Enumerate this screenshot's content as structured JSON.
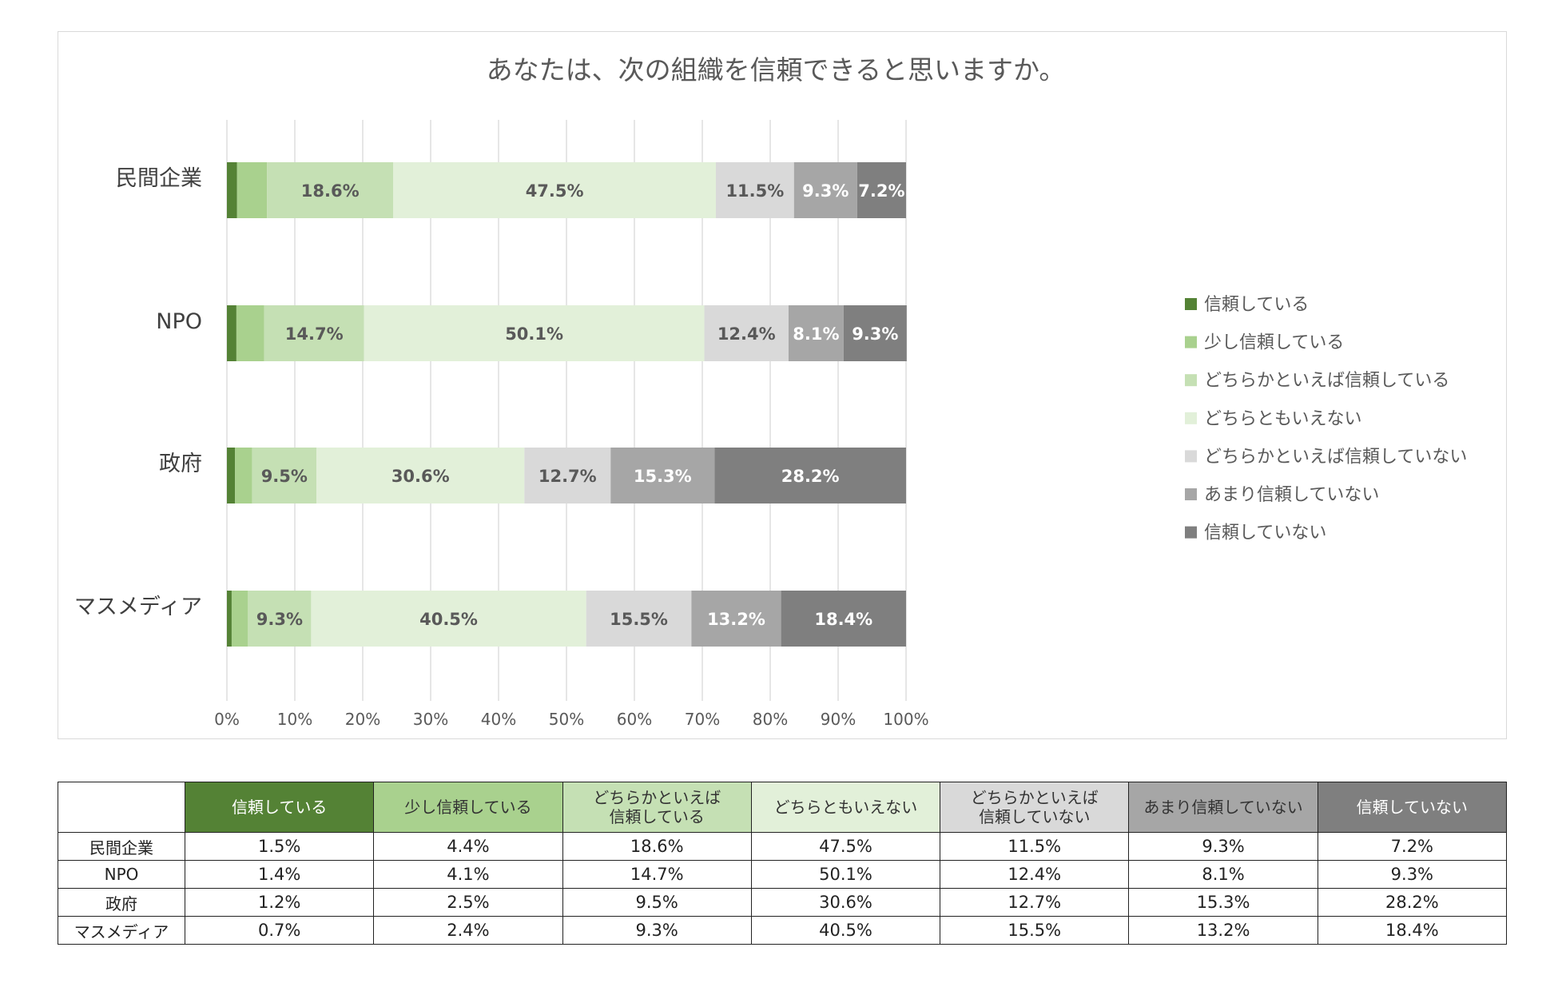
{
  "chart_data": {
    "type": "bar",
    "orientation": "horizontal",
    "stacked": "percent",
    "title": "あなたは、次の組織を信頼できると思いますか。",
    "categories": [
      "民間企業",
      "NPO",
      "政府",
      "マスメディア"
    ],
    "series": [
      {
        "name": "信頼している",
        "values": [
          1.5,
          1.4,
          1.2,
          0.7
        ],
        "color": "#548235",
        "labels": [
          "",
          "",
          "",
          ""
        ],
        "label_color": "#ffffff"
      },
      {
        "name": "少し信頼している",
        "values": [
          4.4,
          4.1,
          2.5,
          2.4
        ],
        "color": "#a9d18e",
        "labels": [
          "",
          "",
          "",
          ""
        ],
        "label_color": "#595959"
      },
      {
        "name": "どちらかといえば信頼している",
        "values": [
          18.6,
          14.7,
          9.5,
          9.3
        ],
        "color": "#c5e0b4",
        "labels": [
          "18.6%",
          "14.7%",
          "9.5%",
          "9.3%"
        ],
        "label_color": "#595959"
      },
      {
        "name": "どちらともいえない",
        "values": [
          47.5,
          50.1,
          30.6,
          40.5
        ],
        "color": "#e2f0d9",
        "labels": [
          "47.5%",
          "50.1%",
          "30.6%",
          "40.5%"
        ],
        "label_color": "#595959"
      },
      {
        "name": "どちらかといえば信頼していない",
        "values": [
          11.5,
          12.4,
          12.7,
          15.5
        ],
        "color": "#d9d9d9",
        "labels": [
          "11.5%",
          "12.4%",
          "12.7%",
          "15.5%"
        ],
        "label_color": "#595959"
      },
      {
        "name": "あまり信頼していない",
        "values": [
          9.3,
          8.1,
          15.3,
          13.2
        ],
        "color": "#a6a6a6",
        "labels": [
          "9.3%",
          "8.1%",
          "15.3%",
          "13.2%"
        ],
        "label_color": "#ffffff"
      },
      {
        "name": "信頼していない",
        "values": [
          7.2,
          9.3,
          28.2,
          18.4
        ],
        "color": "#7f7f7f",
        "labels": [
          "7.2%",
          "9.3%",
          "28.2%",
          "18.4%"
        ],
        "label_color": "#ffffff"
      }
    ],
    "xlim": [
      0,
      100
    ],
    "xticks": [
      "0%",
      "10%",
      "20%",
      "30%",
      "40%",
      "50%",
      "60%",
      "70%",
      "80%",
      "90%",
      "100%"
    ],
    "grid": "vertical",
    "legend_position": "right"
  },
  "table": {
    "headers": [
      {
        "text": "信頼している",
        "bg": "#548235",
        "fg": "#ffffff"
      },
      {
        "text": "少し信頼している",
        "bg": "#a9d18e",
        "fg": "#333333"
      },
      {
        "text": "どちらかといえば\n信頼している",
        "bg": "#c5e0b4",
        "fg": "#333333"
      },
      {
        "text": "どちらともいえない",
        "bg": "#e2f0d9",
        "fg": "#333333"
      },
      {
        "text": "どちらかといえば\n信頼していない",
        "bg": "#d9d9d9",
        "fg": "#333333"
      },
      {
        "text": "あまり信頼していない",
        "bg": "#a6a6a6",
        "fg": "#333333"
      },
      {
        "text": "信頼していない",
        "bg": "#7f7f7f",
        "fg": "#ffffff"
      }
    ],
    "rows": [
      {
        "label": "民間企業",
        "cells": [
          "1.5%",
          "4.4%",
          "18.6%",
          "47.5%",
          "11.5%",
          "9.3%",
          "7.2%"
        ]
      },
      {
        "label": "NPO",
        "cells": [
          "1.4%",
          "4.1%",
          "14.7%",
          "50.1%",
          "12.4%",
          "8.1%",
          "9.3%"
        ]
      },
      {
        "label": "政府",
        "cells": [
          "1.2%",
          "2.5%",
          "9.5%",
          "30.6%",
          "12.7%",
          "15.3%",
          "28.2%"
        ]
      },
      {
        "label": "マスメディア",
        "cells": [
          "0.7%",
          "2.4%",
          "9.3%",
          "40.5%",
          "15.5%",
          "13.2%",
          "18.4%"
        ]
      }
    ]
  }
}
